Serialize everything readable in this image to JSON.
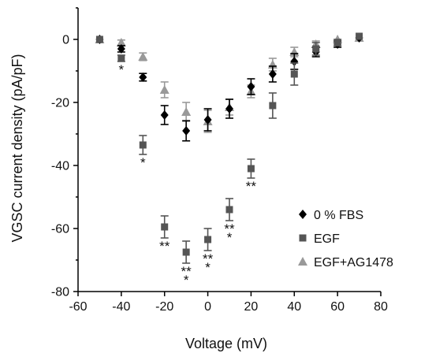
{
  "chart_data": {
    "type": "scatter",
    "title": "",
    "xlabel": "Voltage (mV)",
    "ylabel": "VGSC current density (pA/pF)",
    "xlim": [
      -60,
      80
    ],
    "ylim": [
      -80,
      10
    ],
    "xticks": [
      -60,
      -40,
      -20,
      0,
      20,
      40,
      60,
      80
    ],
    "yticks": [
      -80,
      -60,
      -40,
      -20,
      0
    ],
    "grid": false,
    "legend_position": "bottom-right",
    "series": [
      {
        "name": "0 % FBS",
        "marker": "diamond",
        "color": "#000000",
        "x": [
          -50,
          -40,
          -30,
          -20,
          -10,
          0,
          10,
          20,
          30,
          40,
          50,
          60,
          70
        ],
        "y": [
          0,
          -3,
          -12,
          -24,
          -29,
          -25.5,
          -22,
          -15,
          -11,
          -7,
          -4,
          -1.5,
          0.5
        ],
        "err": [
          0.5,
          1,
          1.2,
          3,
          3.2,
          3.5,
          3,
          2.5,
          2.5,
          2.5,
          1.5,
          1,
          0.5
        ]
      },
      {
        "name": "EGF",
        "marker": "square",
        "color": "#555555",
        "x": [
          -50,
          -40,
          -30,
          -20,
          -10,
          0,
          10,
          20,
          30,
          40,
          50,
          60,
          70
        ],
        "y": [
          0,
          -6,
          -33.5,
          -59.5,
          -67.5,
          -63.5,
          -54,
          -41,
          -21,
          -11,
          -3,
          -1,
          1
        ],
        "err": [
          0.5,
          1,
          3,
          3.5,
          3.5,
          3.5,
          3.5,
          3,
          4,
          3.5,
          2,
          1,
          0.5
        ]
      },
      {
        "name": "EGF+AG1478",
        "marker": "triangle",
        "color": "#999999",
        "x": [
          -50,
          -40,
          -30,
          -20,
          -10,
          0,
          10,
          20,
          30,
          40,
          50,
          60,
          70
        ],
        "y": [
          0,
          -1,
          -5.5,
          -16,
          -23,
          -26,
          -21.5,
          -16.5,
          -8,
          -4,
          -1.5,
          0,
          0.5
        ],
        "err": [
          0.5,
          0.8,
          1.2,
          2.5,
          3,
          3.5,
          2.5,
          2,
          2,
          1.5,
          1,
          0.5,
          0.5
        ]
      }
    ],
    "annotations": [
      {
        "text": "*",
        "x": -40
      },
      {
        "text": "*",
        "x": -30
      },
      {
        "text": "**",
        "x": -20
      },
      {
        "text": "**\n*",
        "x": -10
      },
      {
        "text": "**\n*",
        "x": 0
      },
      {
        "text": "**\n*",
        "x": 10
      },
      {
        "text": "**",
        "x": 20
      }
    ]
  }
}
